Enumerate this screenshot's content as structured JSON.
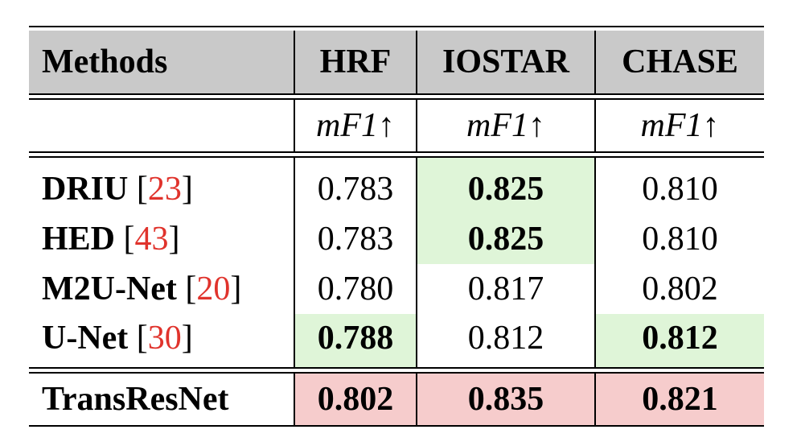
{
  "table": {
    "headers": [
      "Methods",
      "HRF",
      "IOSTAR",
      "CHASE"
    ],
    "metric_row": [
      "",
      "mF1↑",
      "mF1↑",
      "mF1↑"
    ],
    "rows": [
      {
        "method": "DRIU",
        "ref": "23",
        "values": [
          "0.783",
          "0.825",
          "0.810"
        ],
        "best": [
          false,
          true,
          false
        ]
      },
      {
        "method": "HED",
        "ref": "43",
        "values": [
          "0.783",
          "0.825",
          "0.810"
        ],
        "best": [
          false,
          true,
          false
        ]
      },
      {
        "method": "M2U-Net",
        "ref": "20",
        "values": [
          "0.780",
          "0.817",
          "0.802"
        ],
        "best": [
          false,
          false,
          false
        ]
      },
      {
        "method": "U-Net",
        "ref": "30",
        "values": [
          "0.788",
          "0.812",
          "0.812"
        ],
        "best": [
          true,
          false,
          true
        ]
      }
    ],
    "ours": {
      "method": "TransResNet",
      "values": [
        "0.802",
        "0.835",
        "0.821"
      ]
    }
  },
  "colors": {
    "header_bg": "#c9c9c9",
    "best_bg": "#dff5d8",
    "ours_bg": "#f6cccc",
    "ref_color": "#e0332c"
  }
}
